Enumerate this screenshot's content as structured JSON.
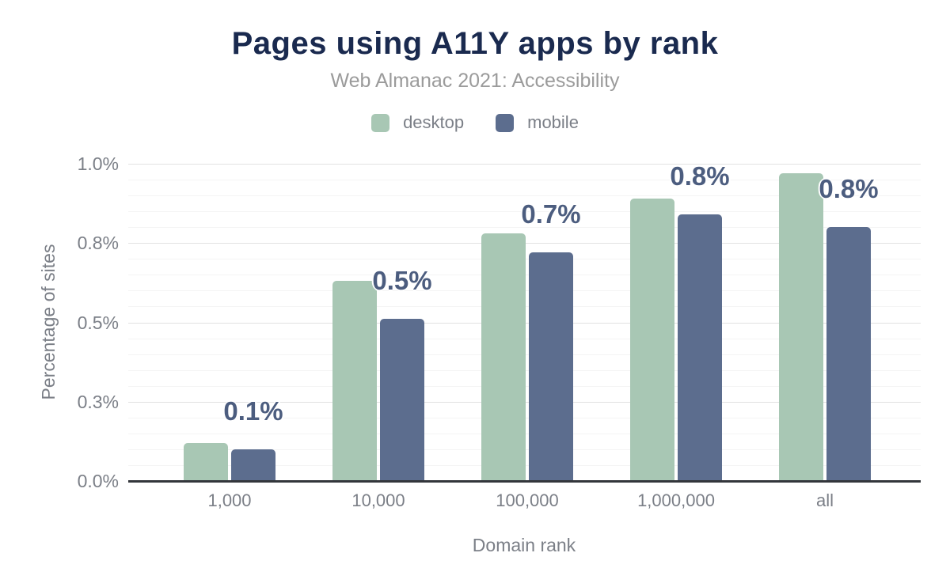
{
  "header": {
    "title": "Pages using A11Y apps by rank",
    "subtitle": "Web Almanac 2021: Accessibility"
  },
  "colors": {
    "desktop_bar": "#a8c7b4",
    "mobile_bar": "#5c6d8e",
    "title_text": "#1a2a4f",
    "subtitle_text": "#9b9b9b",
    "axis_text": "#7b7f87",
    "data_label_text": "#4c5d7f",
    "gridline_major": "#e2e2e2",
    "gridline_minor": "#f4f4f4",
    "axis_line": "#33363b"
  },
  "chart_data": {
    "type": "bar",
    "title": "Pages using A11Y apps by rank",
    "subtitle": "Web Almanac 2021: Accessibility",
    "categories": [
      "1,000",
      "10,000",
      "100,000",
      "1,000,000",
      "all"
    ],
    "series": [
      {
        "name": "desktop",
        "color": "#a8c7b4",
        "values": [
          0.12,
          0.63,
          0.78,
          0.89,
          0.97
        ]
      },
      {
        "name": "mobile",
        "color": "#5c6d8e",
        "values": [
          0.1,
          0.51,
          0.72,
          0.84,
          0.8
        ]
      }
    ],
    "data_labels": {
      "labeled_series": "mobile",
      "labels": [
        "0.1%",
        "0.5%",
        "0.7%",
        "0.8%",
        "0.8%"
      ]
    },
    "xlabel": "Domain rank",
    "ylabel": "Percentage of sites",
    "y_ticks": [
      "0.0%",
      "0.3%",
      "0.5%",
      "0.8%",
      "1.0%"
    ],
    "y_tick_values": [
      0,
      0.25,
      0.5,
      0.75,
      1.0
    ],
    "ylim": [
      0,
      1.0
    ],
    "y_major_step": 0.25,
    "y_minor_step": 0.05,
    "unit": "%",
    "grid": true,
    "legend_position": "top"
  }
}
